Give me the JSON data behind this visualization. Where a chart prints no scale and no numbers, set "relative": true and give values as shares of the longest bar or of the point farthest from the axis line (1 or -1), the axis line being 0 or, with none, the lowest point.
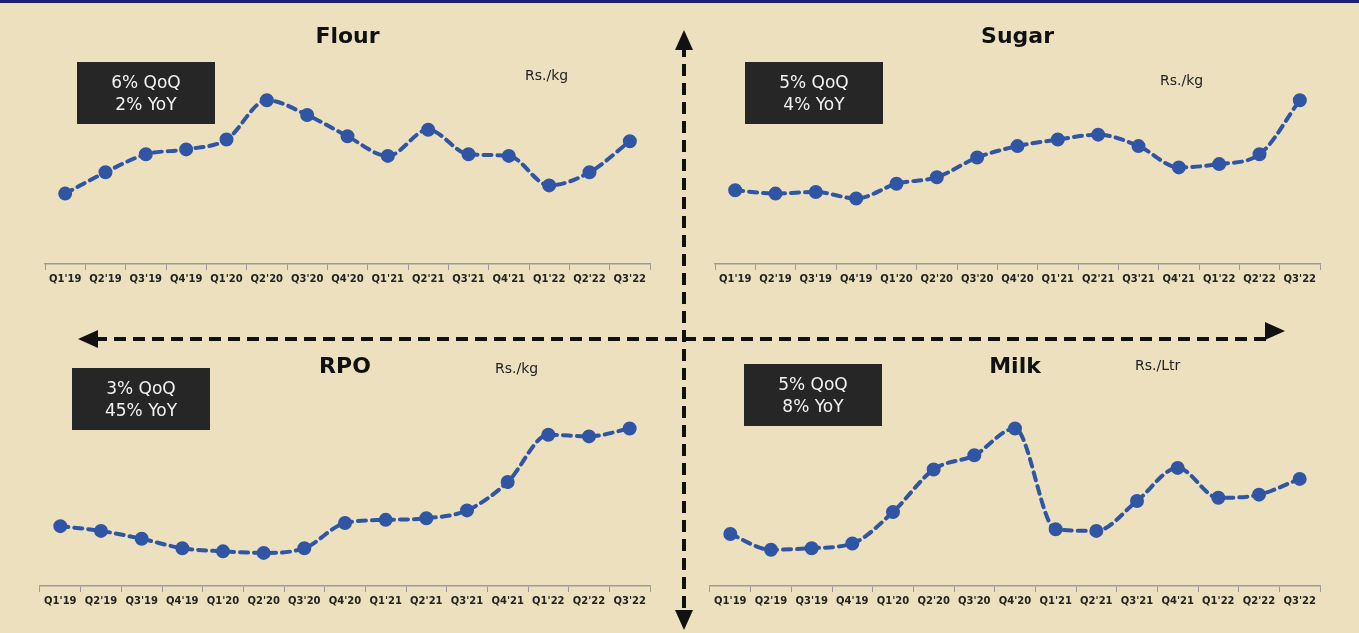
{
  "chart_data": [
    {
      "type": "line",
      "title": "Flour",
      "ylabel": "Rs./kg",
      "relative": true,
      "marker": "circle",
      "line_style": "dashed",
      "annotations": [
        "6% QoQ",
        "2% YoY"
      ],
      "categories": [
        "Q1'19",
        "Q2'19",
        "Q3'19",
        "Q4'19",
        "Q1'20",
        "Q2'20",
        "Q3'20",
        "Q4'20",
        "Q1'21",
        "Q2'21",
        "Q3'21",
        "Q4'21",
        "Q1'22",
        "Q2'22",
        "Q3'22"
      ],
      "series": [
        {
          "color": "#2f55a4",
          "values": [
            0.43,
            0.56,
            0.67,
            0.7,
            0.76,
            1,
            0.91,
            0.78,
            0.66,
            0.82,
            0.67,
            0.66,
            0.48,
            0.56,
            0.75
          ]
        }
      ]
    },
    {
      "type": "line",
      "title": "Sugar",
      "ylabel": "Rs./kg",
      "relative": true,
      "marker": "circle",
      "line_style": "dashed",
      "annotations": [
        "5% QoQ",
        "4% YoY"
      ],
      "categories": [
        "Q1'19",
        "Q2'19",
        "Q3'19",
        "Q4'19",
        "Q1'20",
        "Q2'20",
        "Q3'20",
        "Q4'20",
        "Q1'21",
        "Q2'21",
        "Q3'21",
        "Q4'21",
        "Q1'22",
        "Q2'22",
        "Q3'22"
      ],
      "series": [
        {
          "color": "#2f55a4",
          "values": [
            0.45,
            0.43,
            0.44,
            0.4,
            0.49,
            0.53,
            0.65,
            0.72,
            0.76,
            0.79,
            0.72,
            0.59,
            0.61,
            0.67,
            1
          ]
        }
      ]
    },
    {
      "type": "line",
      "title": "RPO",
      "ylabel": "Rs./kg",
      "relative": true,
      "marker": "circle",
      "line_style": "dashed",
      "annotations": [
        "3% QoQ",
        "45% YoY"
      ],
      "categories": [
        "Q1'19",
        "Q2'19",
        "Q3'19",
        "Q4'19",
        "Q1'20",
        "Q2'20",
        "Q3'20",
        "Q4'20",
        "Q1'21",
        "Q2'21",
        "Q3'21",
        "Q4'21",
        "Q1'22",
        "Q2'22",
        "Q3'22"
      ],
      "series": [
        {
          "color": "#2f55a4",
          "values": [
            0.38,
            0.35,
            0.3,
            0.24,
            0.22,
            0.21,
            0.24,
            0.4,
            0.42,
            0.43,
            0.48,
            0.66,
            0.96,
            0.95,
            1
          ]
        }
      ]
    },
    {
      "type": "line",
      "title": "Milk",
      "ylabel": "Rs./Ltr",
      "relative": true,
      "marker": "circle",
      "line_style": "dashed",
      "annotations": [
        "5% QoQ",
        "8% YoY"
      ],
      "categories": [
        "Q1'19",
        "Q2'19",
        "Q3'19",
        "Q4'19",
        "Q1'20",
        "Q2'20",
        "Q3'20",
        "Q4'20",
        "Q1'21",
        "Q2'21",
        "Q3'21",
        "Q4'21",
        "Q1'22",
        "Q2'22",
        "Q3'22"
      ],
      "series": [
        {
          "color": "#2f55a4",
          "values": [
            0.33,
            0.23,
            0.24,
            0.27,
            0.47,
            0.74,
            0.83,
            1,
            0.36,
            0.35,
            0.54,
            0.75,
            0.56,
            0.58,
            0.68
          ]
        }
      ]
    }
  ]
}
